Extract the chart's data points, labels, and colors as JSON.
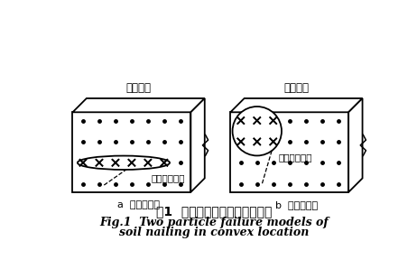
{
  "title_cn": "图1  两种阳角土钉局部失效模式",
  "title_en1": "Fig.1  Two particle failure models of",
  "title_en2": "soil nailing in convex location",
  "label_a": "a  失效模式一",
  "label_b": "b  失效模式二",
  "label_corner": "基坑阳角",
  "label_failure": "土钉失效范围",
  "bg_color": "#ffffff"
}
